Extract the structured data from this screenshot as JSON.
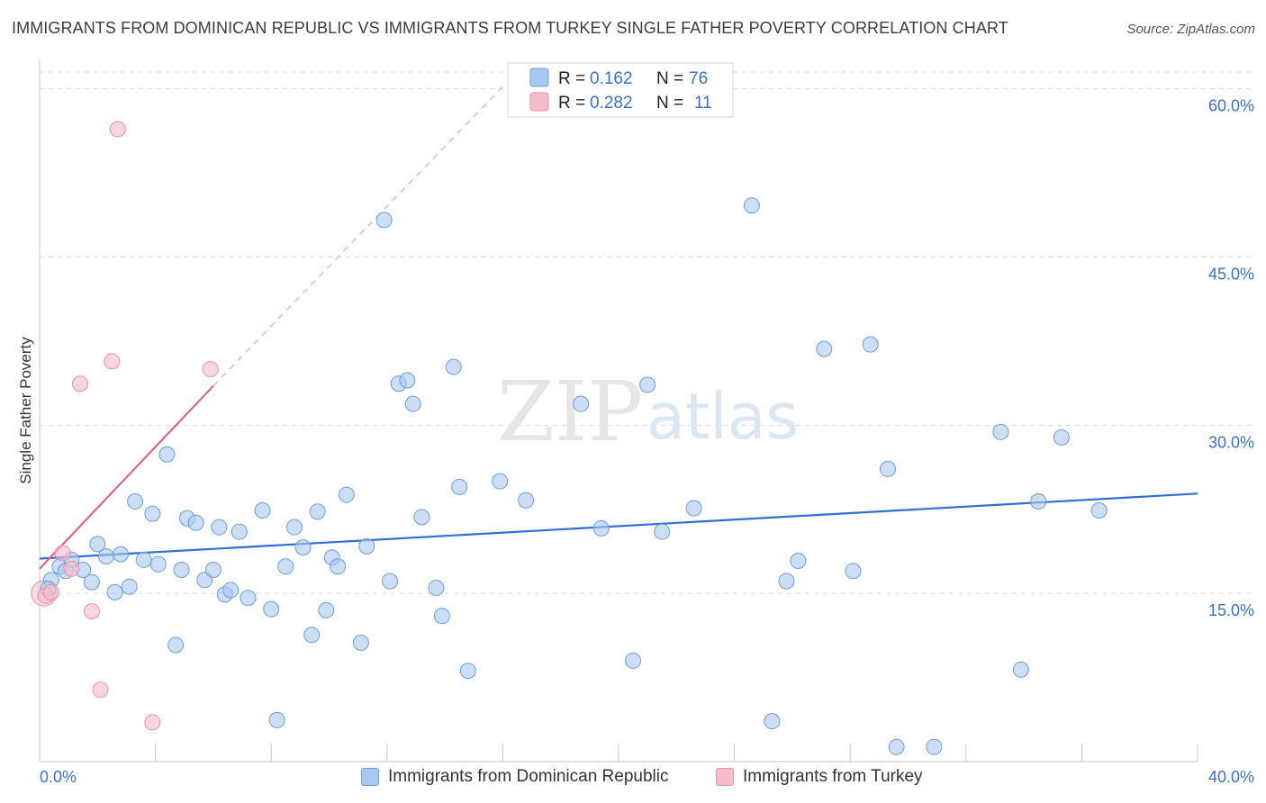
{
  "title": "IMMIGRANTS FROM DOMINICAN REPUBLIC VS IMMIGRANTS FROM TURKEY SINGLE FATHER POVERTY CORRELATION CHART",
  "source": "Source: ZipAtlas.com",
  "watermark": {
    "zip": "ZIP",
    "atlas": "atlas"
  },
  "colors": {
    "blue_fill": "#a9c8f0",
    "blue_stroke": "#6d9fdc",
    "blue_line": "#2f6fcf",
    "pink_fill": "#f7bccb",
    "pink_stroke": "#ec8fa8",
    "pink_line": "#e0638a",
    "tick": "#3a72c8",
    "grid": "#d8d8d8"
  },
  "legend": {
    "r_label": "R =",
    "n_label": "N =",
    "rows": [
      {
        "r": "0.162",
        "n": "76"
      },
      {
        "r": "0.282",
        "n": "11"
      }
    ]
  },
  "chart_data": {
    "type": "scatter",
    "title": "IMMIGRANTS FROM DOMINICAN REPUBLIC VS IMMIGRANTS FROM TURKEY SINGLE FATHER POVERTY CORRELATION CHART",
    "xlabel": "",
    "ylabel": "Single Father Poverty",
    "xlim": [
      0,
      40
    ],
    "ylim": [
      0,
      61.5
    ],
    "x_tick_labels": [
      "0.0%",
      "40.0%"
    ],
    "y_ticks": [
      15,
      30,
      45,
      60
    ],
    "y_tick_labels": [
      "15.0%",
      "30.0%",
      "45.0%",
      "60.0%"
    ],
    "grid": true,
    "series": [
      {
        "name": "Immigrants from Dominican Republic",
        "r": 0.162,
        "n": 76,
        "trend": {
          "x0": 0,
          "y0": 18.1,
          "x1": 40,
          "y1": 23.9
        },
        "points": [
          [
            0.4,
            16.2
          ],
          [
            0.7,
            17.4
          ],
          [
            0.9,
            17.0
          ],
          [
            1.1,
            18.0
          ],
          [
            1.5,
            17.1
          ],
          [
            1.8,
            16.0
          ],
          [
            2.0,
            19.4
          ],
          [
            2.3,
            18.3
          ],
          [
            2.6,
            15.1
          ],
          [
            2.8,
            18.5
          ],
          [
            3.1,
            15.6
          ],
          [
            3.3,
            23.2
          ],
          [
            3.6,
            18.0
          ],
          [
            3.9,
            22.1
          ],
          [
            4.1,
            17.6
          ],
          [
            4.4,
            27.4
          ],
          [
            4.7,
            10.4
          ],
          [
            4.9,
            17.1
          ],
          [
            5.1,
            21.7
          ],
          [
            5.4,
            21.3
          ],
          [
            5.7,
            16.2
          ],
          [
            6.0,
            17.1
          ],
          [
            6.2,
            20.9
          ],
          [
            6.4,
            14.9
          ],
          [
            6.6,
            15.3
          ],
          [
            6.9,
            20.5
          ],
          [
            7.2,
            14.6
          ],
          [
            7.7,
            22.4
          ],
          [
            8.0,
            13.6
          ],
          [
            8.2,
            3.7
          ],
          [
            8.5,
            17.4
          ],
          [
            8.8,
            20.9
          ],
          [
            9.1,
            19.1
          ],
          [
            9.4,
            11.3
          ],
          [
            9.6,
            22.3
          ],
          [
            9.9,
            13.5
          ],
          [
            10.1,
            18.2
          ],
          [
            10.3,
            17.4
          ],
          [
            10.6,
            23.8
          ],
          [
            11.1,
            10.6
          ],
          [
            11.3,
            19.2
          ],
          [
            11.9,
            48.3
          ],
          [
            12.1,
            16.1
          ],
          [
            12.4,
            33.7
          ],
          [
            12.7,
            34.0
          ],
          [
            12.9,
            31.9
          ],
          [
            13.2,
            21.8
          ],
          [
            13.7,
            15.5
          ],
          [
            13.9,
            13.0
          ],
          [
            14.3,
            35.2
          ],
          [
            14.5,
            24.5
          ],
          [
            14.8,
            8.1
          ],
          [
            15.9,
            25.0
          ],
          [
            16.8,
            23.3
          ],
          [
            18.7,
            31.9
          ],
          [
            19.4,
            20.8
          ],
          [
            20.5,
            9.0
          ],
          [
            21.0,
            33.6
          ],
          [
            21.5,
            20.5
          ],
          [
            22.6,
            22.6
          ],
          [
            24.6,
            49.6
          ],
          [
            25.3,
            3.6
          ],
          [
            25.8,
            16.1
          ],
          [
            26.2,
            17.9
          ],
          [
            27.1,
            36.8
          ],
          [
            28.1,
            17.0
          ],
          [
            28.7,
            37.2
          ],
          [
            29.3,
            26.1
          ],
          [
            29.6,
            1.3
          ],
          [
            30.9,
            1.3
          ],
          [
            33.2,
            29.4
          ],
          [
            33.9,
            8.2
          ],
          [
            34.5,
            23.2
          ],
          [
            35.3,
            28.9
          ],
          [
            36.6,
            22.4
          ],
          [
            0.3,
            15.4
          ]
        ]
      },
      {
        "name": "Immigrants from Turkey",
        "r": 0.282,
        "n": 11,
        "trend": {
          "x0": 0,
          "y0": 17.2,
          "x1": 6.0,
          "y1": 33.5
        },
        "trend_ext": {
          "x0": 6.0,
          "y0": 33.5,
          "x1": 16.0,
          "y1": 60.2
        },
        "points": [
          [
            0.2,
            14.8
          ],
          [
            0.4,
            15.1
          ],
          [
            0.8,
            18.6
          ],
          [
            1.1,
            17.2
          ],
          [
            1.4,
            33.7
          ],
          [
            1.8,
            13.4
          ],
          [
            2.1,
            6.4
          ],
          [
            2.5,
            35.7
          ],
          [
            2.7,
            56.4
          ],
          [
            3.9,
            3.5
          ],
          [
            5.9,
            35.0
          ]
        ]
      }
    ]
  },
  "bottom_legend": [
    {
      "label": "Immigrants from Dominican Republic"
    },
    {
      "label": "Immigrants from Turkey"
    }
  ]
}
